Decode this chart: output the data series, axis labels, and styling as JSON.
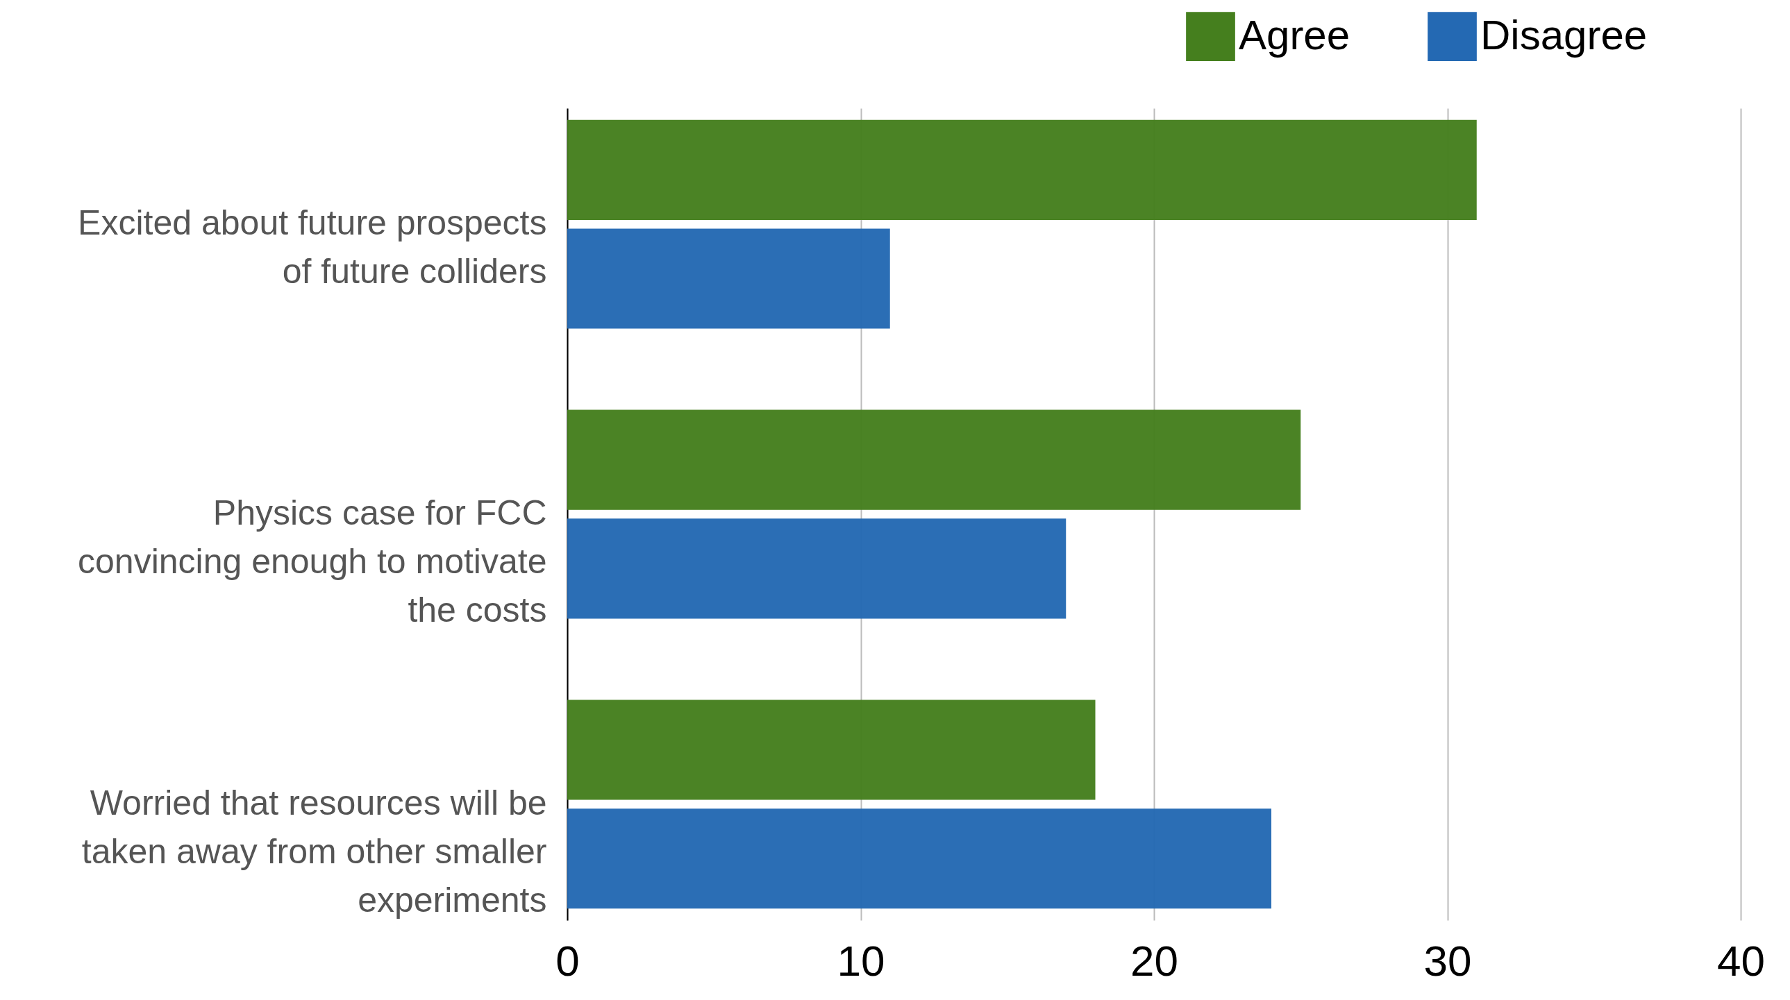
{
  "chart_data": {
    "type": "bar",
    "orientation": "horizontal",
    "categories": [
      "Excited about future prospects of future colliders",
      "Physics case for FCC convincing enough to motivate the costs",
      "Worried that resources will be taken away from other smaller experiments"
    ],
    "series": [
      {
        "name": "Agree",
        "color": "#457f1e",
        "values": [
          31,
          25,
          18
        ]
      },
      {
        "name": "Disagree",
        "color": "#2469b3",
        "values": [
          11,
          17,
          24
        ]
      }
    ],
    "xlim": [
      0,
      40
    ],
    "xticks": [
      0,
      10,
      20,
      30,
      40
    ],
    "grid": "x",
    "legend": "top right"
  }
}
